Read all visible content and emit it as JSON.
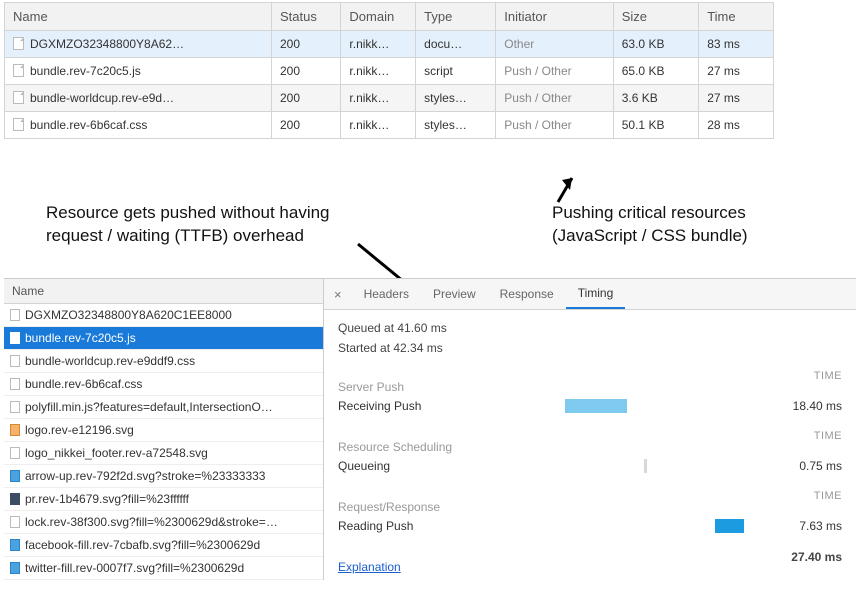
{
  "colors": {
    "row_selected_bg": "#e4f0fb",
    "row_alt_bg": "#f5f5f5",
    "list_selected_bg": "#1a7ad9",
    "tab_active_underline": "#1a7ad9",
    "bar_receiving": "#7ecbef",
    "bar_queueing": "#d8d8d8",
    "bar_reading": "#1c9be0",
    "link_color": "#1a5fd0"
  },
  "net_table": {
    "headers": [
      "Name",
      "Status",
      "Domain",
      "Type",
      "Initiator",
      "Size",
      "Time"
    ],
    "rows": [
      {
        "name": "DGXMZO32348800Y8A62…",
        "status": "200",
        "domain": "r.nikk…",
        "type": "docu…",
        "initiator": "Other",
        "size": "63.0 KB",
        "time": "83 ms",
        "selected": true
      },
      {
        "name": "bundle.rev-7c20c5.js",
        "status": "200",
        "domain": "r.nikk…",
        "type": "script",
        "initiator": "Push / Other",
        "size": "65.0 KB",
        "time": "27 ms"
      },
      {
        "name": "bundle-worldcup.rev-e9d…",
        "status": "200",
        "domain": "r.nikk…",
        "type": "styles…",
        "initiator": "Push / Other",
        "size": "3.6 KB",
        "time": "27 ms",
        "alt": true
      },
      {
        "name": "bundle.rev-6b6caf.css",
        "status": "200",
        "domain": "r.nikk…",
        "type": "styles…",
        "initiator": "Push / Other",
        "size": "50.1 KB",
        "time": "28 ms"
      }
    ]
  },
  "annotations": {
    "left": "Resource gets pushed without having\nrequest / waiting (TTFB) overhead",
    "right": "Pushing critical resources\n(JavaScript / CSS bundle)"
  },
  "file_list": {
    "header": "Name",
    "items": [
      {
        "label": "DGXMZO32348800Y8A620C1EE8000",
        "icon": "plain"
      },
      {
        "label": "bundle.rev-7c20c5.js",
        "icon": "plain",
        "selected": true
      },
      {
        "label": "bundle-worldcup.rev-e9ddf9.css",
        "icon": "plain"
      },
      {
        "label": "bundle.rev-6b6caf.css",
        "icon": "plain"
      },
      {
        "label": "polyfill.min.js?features=default,IntersectionO…",
        "icon": "plain"
      },
      {
        "label": "logo.rev-e12196.svg",
        "icon": "orange"
      },
      {
        "label": "logo_nikkei_footer.rev-a72548.svg",
        "icon": "plain"
      },
      {
        "label": "arrow-up.rev-792f2d.svg?stroke=%23333333",
        "icon": "blue"
      },
      {
        "label": "pr.rev-1b4679.svg?fill=%23ffffff",
        "icon": "dark"
      },
      {
        "label": "lock.rev-38f300.svg?fill=%2300629d&stroke=…",
        "icon": "plain"
      },
      {
        "label": "facebook-fill.rev-7cbafb.svg?fill=%2300629d",
        "icon": "blue"
      },
      {
        "label": "twitter-fill.rev-0007f7.svg?fill=%2300629d",
        "icon": "blue"
      }
    ]
  },
  "detail": {
    "tabs": [
      "Headers",
      "Preview",
      "Response",
      "Timing"
    ],
    "active_tab": 3,
    "queued": "Queued at 41.60 ms",
    "started": "Started at 42.34 ms",
    "sections": {
      "server_push": {
        "label": "Server Push",
        "time_header": "TIME",
        "rows": [
          {
            "label": "Receiving Push",
            "value": "18.40 ms",
            "bar_left_pct": 27,
            "bar_width_pct": 22,
            "color": "#7ecbef"
          }
        ]
      },
      "scheduling": {
        "label": "Resource Scheduling",
        "time_header": "TIME",
        "rows": [
          {
            "label": "Queueing",
            "value": "0.75 ms",
            "bar_left_pct": 55,
            "bar_width_pct": 1,
            "color": "#d8d8d8"
          }
        ]
      },
      "reqresp": {
        "label": "Request/Response",
        "time_header": "TIME",
        "rows": [
          {
            "label": "Reading Push",
            "value": "7.63 ms",
            "bar_left_pct": 80,
            "bar_width_pct": 10,
            "color": "#1c9be0"
          }
        ]
      }
    },
    "explanation_label": "Explanation",
    "total": "27.40 ms"
  }
}
